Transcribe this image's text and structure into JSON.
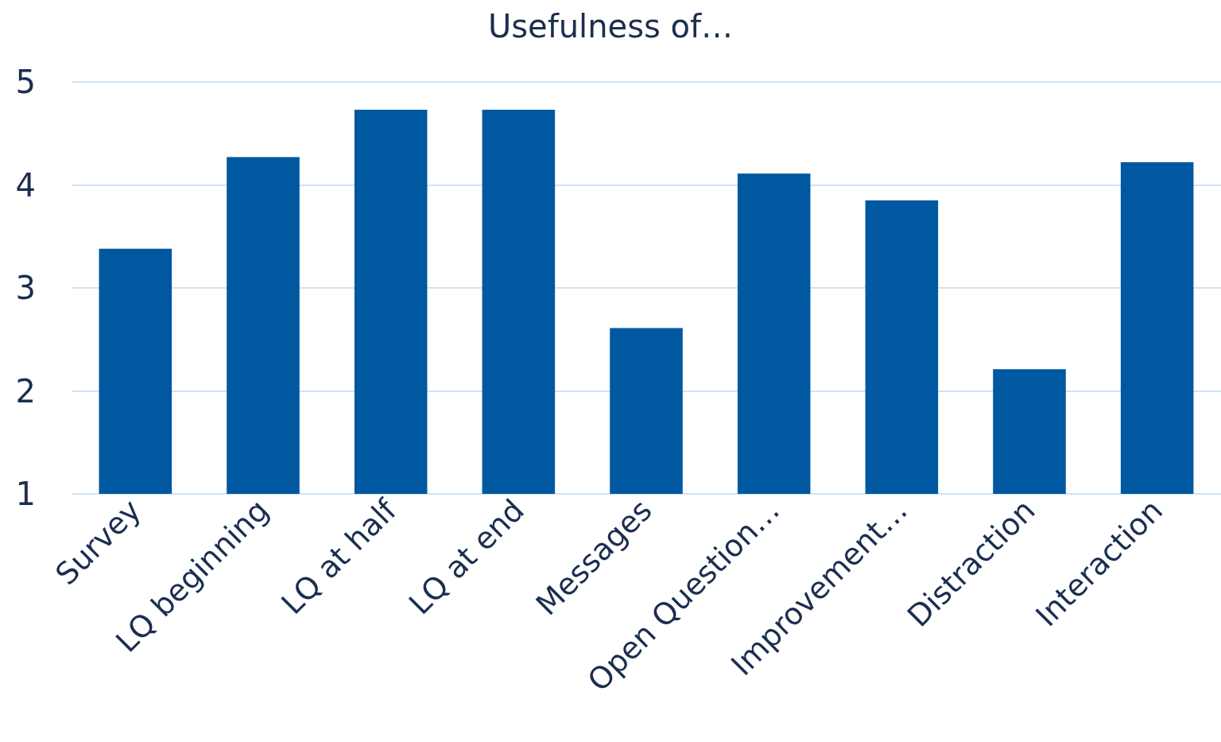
{
  "chart_data": {
    "type": "bar",
    "title": "Usefulness of…",
    "categories": [
      "Survey",
      "LQ beginning",
      "LQ at half",
      "LQ at end",
      "Messages",
      "Open Question…",
      "Improvement…",
      "Distraction",
      "Interaction"
    ],
    "values": [
      3.38,
      4.27,
      4.73,
      4.73,
      2.61,
      4.11,
      3.85,
      2.21,
      4.22
    ],
    "color": "#0058a0",
    "ylim": [
      1,
      5
    ],
    "yticks": [
      1,
      2,
      3,
      4,
      5
    ],
    "grid": "y"
  }
}
